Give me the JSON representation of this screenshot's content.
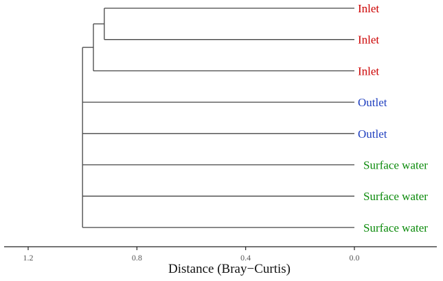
{
  "chart_data": {
    "type": "dendrogram",
    "orientation": "horizontal",
    "xlabel": "Distance (Bray−Curtis)",
    "xlim": [
      1.32,
      -0.3
    ],
    "xticks": [
      1.2,
      0.8,
      0.4,
      0.0
    ],
    "xtick_labels": [
      "1.2",
      "0.8",
      "0.4",
      "0.0"
    ],
    "grid": false,
    "leaves": [
      {
        "label": "Inlet",
        "group": "Inlet"
      },
      {
        "label": "Inlet",
        "group": "Inlet"
      },
      {
        "label": "Inlet",
        "group": "Inlet"
      },
      {
        "label": "Outlet",
        "group": "Outlet"
      },
      {
        "label": "Outlet",
        "group": "Outlet"
      },
      {
        "label": "Surface water",
        "group": "Surface water"
      },
      {
        "label": "Surface water",
        "group": "Surface water"
      },
      {
        "label": "Surface water",
        "group": "Surface water"
      }
    ],
    "group_colors": {
      "Inlet": "#cc0000",
      "Outlet": "#1f3fbf",
      "Surface water": "#0a8a0a"
    },
    "merges": [
      {
        "id": "m1",
        "children": [
          "L0",
          "L1"
        ],
        "height": 0.92
      },
      {
        "id": "m2",
        "children": [
          "m1",
          "L2"
        ],
        "height": 0.96
      },
      {
        "id": "m3",
        "children": [
          "m2",
          "L3",
          "L4",
          "L5",
          "L6",
          "L7"
        ],
        "height": 1.0
      }
    ]
  }
}
